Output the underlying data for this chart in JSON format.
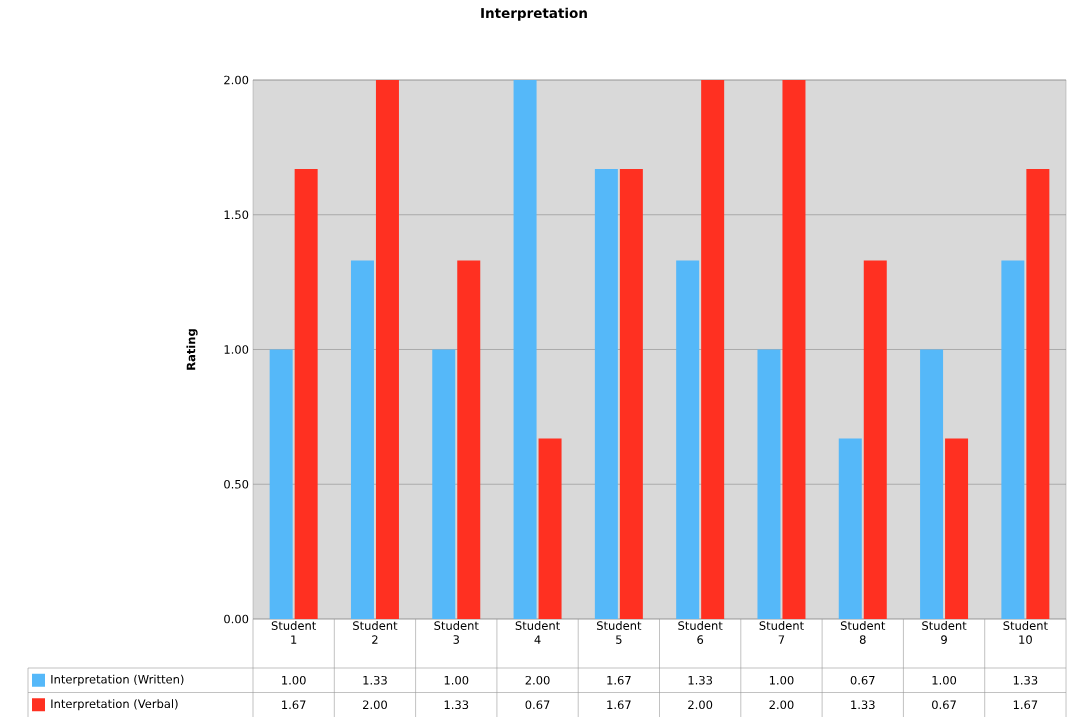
{
  "chart_data": {
    "type": "bar",
    "title": "Interpretation",
    "ylabel": "Rating",
    "categories": [
      "Student 1",
      "Student 2",
      "Student 3",
      "Student 4",
      "Student 5",
      "Student 6",
      "Student 7",
      "Student 8",
      "Student 9",
      "Student 10"
    ],
    "series": [
      {
        "name": "Interpretation (Written)",
        "color": "#55b8f9",
        "values": [
          1.0,
          1.33,
          1.0,
          2.0,
          1.67,
          1.33,
          1.0,
          0.67,
          1.0,
          1.33
        ],
        "value_labels": [
          "1.00",
          "1.33",
          "1.00",
          "2.00",
          "1.67",
          "1.33",
          "1.00",
          "0.67",
          "1.00",
          "1.33"
        ]
      },
      {
        "name": "Interpretation (Verbal)",
        "color": "#ff3021",
        "values": [
          1.67,
          2.0,
          1.33,
          0.67,
          1.67,
          2.0,
          2.0,
          1.33,
          0.67,
          1.67
        ],
        "value_labels": [
          "1.67",
          "2.00",
          "1.33",
          "0.67",
          "1.67",
          "2.00",
          "2.00",
          "1.33",
          "0.67",
          "1.67"
        ]
      }
    ],
    "ylim": [
      0,
      2
    ],
    "yticks": [
      {
        "value": 0,
        "label": "0.00"
      },
      {
        "value": 0.5,
        "label": "0.50"
      },
      {
        "value": 1,
        "label": "1.00"
      },
      {
        "value": 1.5,
        "label": "1.50"
      },
      {
        "value": 2,
        "label": "2.00"
      }
    ],
    "grid": "y",
    "legend": "bottom"
  }
}
